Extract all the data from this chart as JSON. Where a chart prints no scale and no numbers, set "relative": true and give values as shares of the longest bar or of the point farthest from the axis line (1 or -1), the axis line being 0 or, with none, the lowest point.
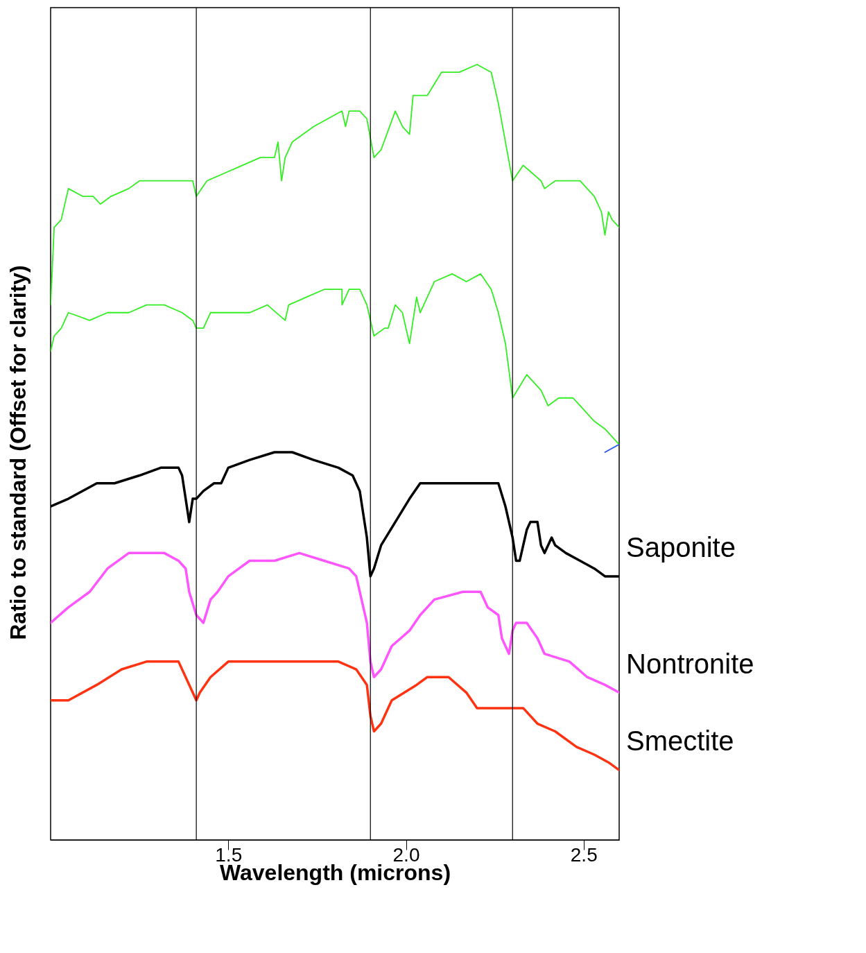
{
  "chart_data": {
    "type": "line",
    "relative": true,
    "xlabel": "Wavelength (microns)",
    "ylabel": "Ratio to standard (Offset for clarity)",
    "xlim": [
      1.0,
      2.6
    ],
    "xticks": [
      1.5,
      {
        "value": 2.0,
        "label": "2.0"
      },
      2.5
    ],
    "ref_lines": [
      {
        "axis": "x",
        "value": 1.41,
        "color": "#000000"
      },
      {
        "axis": "x",
        "value": 1.9,
        "color": "#000000"
      },
      {
        "axis": "x",
        "value": 2.3,
        "color": "#000000"
      }
    ],
    "series": [
      {
        "color": "#33ee22",
        "x": [
          1.0,
          1.01,
          1.03,
          1.05,
          1.09,
          1.12,
          1.14,
          1.17,
          1.22,
          1.25,
          1.29,
          1.32,
          1.37,
          1.4,
          1.41,
          1.44,
          1.49,
          1.54,
          1.59,
          1.63,
          1.64,
          1.65,
          1.66,
          1.68,
          1.74,
          1.78,
          1.82,
          1.83,
          1.84,
          1.87,
          1.89,
          1.91,
          1.93,
          1.97,
          1.99,
          2.01,
          2.02,
          2.06,
          2.1,
          2.15,
          2.2,
          2.24,
          2.26,
          2.28,
          2.3,
          2.33,
          2.38,
          2.39,
          2.42,
          2.46,
          2.49,
          2.53,
          2.55,
          2.56,
          2.57,
          2.58,
          2.6
        ],
        "values": [
          0.69,
          0.79,
          0.8,
          0.84,
          0.83,
          0.83,
          0.82,
          0.83,
          0.84,
          0.85,
          0.85,
          0.85,
          0.85,
          0.85,
          0.83,
          0.85,
          0.86,
          0.87,
          0.88,
          0.88,
          0.9,
          0.85,
          0.88,
          0.9,
          0.92,
          0.93,
          0.94,
          0.92,
          0.94,
          0.94,
          0.93,
          0.88,
          0.89,
          0.94,
          0.92,
          0.91,
          0.96,
          0.96,
          0.99,
          0.99,
          1.0,
          0.99,
          0.95,
          0.9,
          0.85,
          0.87,
          0.85,
          0.84,
          0.85,
          0.85,
          0.85,
          0.83,
          0.81,
          0.78,
          0.81,
          0.8,
          0.79
        ]
      },
      {
        "color": "#33ee22",
        "x": [
          1.0,
          1.01,
          1.03,
          1.05,
          1.11,
          1.16,
          1.22,
          1.27,
          1.32,
          1.37,
          1.4,
          1.41,
          1.43,
          1.45,
          1.5,
          1.56,
          1.61,
          1.66,
          1.67,
          1.72,
          1.77,
          1.82,
          1.82,
          1.84,
          1.87,
          1.89,
          1.91,
          1.94,
          1.95,
          1.97,
          1.99,
          2.01,
          2.03,
          2.04,
          2.08,
          2.13,
          2.17,
          2.21,
          2.24,
          2.26,
          2.28,
          2.3,
          2.34,
          2.38,
          2.4,
          2.43,
          2.47,
          2.49,
          2.53,
          2.56,
          2.58,
          2.6
        ],
        "values": [
          0.63,
          0.65,
          0.66,
          0.68,
          0.67,
          0.68,
          0.68,
          0.69,
          0.69,
          0.68,
          0.67,
          0.66,
          0.66,
          0.68,
          0.68,
          0.68,
          0.69,
          0.67,
          0.69,
          0.7,
          0.71,
          0.71,
          0.69,
          0.71,
          0.71,
          0.69,
          0.65,
          0.66,
          0.66,
          0.69,
          0.68,
          0.64,
          0.7,
          0.68,
          0.72,
          0.73,
          0.72,
          0.73,
          0.71,
          0.68,
          0.64,
          0.57,
          0.6,
          0.58,
          0.56,
          0.57,
          0.57,
          0.56,
          0.54,
          0.53,
          0.52,
          0.51
        ]
      },
      {
        "color": "#2255ee",
        "x": [
          2.56,
          2.6
        ],
        "values": [
          0.5,
          0.51
        ]
      },
      {
        "name": "Saponite",
        "color": "#000000",
        "x": [
          1.0,
          1.05,
          1.13,
          1.18,
          1.25,
          1.31,
          1.36,
          1.37,
          1.38,
          1.39,
          1.4,
          1.41,
          1.43,
          1.46,
          1.48,
          1.5,
          1.56,
          1.63,
          1.68,
          1.74,
          1.81,
          1.85,
          1.87,
          1.89,
          1.9,
          1.91,
          1.93,
          1.97,
          2.01,
          2.04,
          2.08,
          2.15,
          2.2,
          2.26,
          2.28,
          2.3,
          2.31,
          2.32,
          2.34,
          2.35,
          2.37,
          2.38,
          2.39,
          2.41,
          2.42,
          2.45,
          2.49,
          2.53,
          2.56,
          2.6
        ],
        "values": [
          0.43,
          0.44,
          0.46,
          0.46,
          0.47,
          0.48,
          0.48,
          0.47,
          0.44,
          0.41,
          0.44,
          0.44,
          0.45,
          0.46,
          0.46,
          0.48,
          0.49,
          0.5,
          0.5,
          0.49,
          0.48,
          0.47,
          0.45,
          0.39,
          0.34,
          0.35,
          0.38,
          0.41,
          0.44,
          0.46,
          0.46,
          0.46,
          0.46,
          0.46,
          0.43,
          0.39,
          0.36,
          0.36,
          0.4,
          0.41,
          0.41,
          0.38,
          0.37,
          0.39,
          0.38,
          0.37,
          0.36,
          0.35,
          0.34,
          0.34
        ]
      },
      {
        "name": "Nontronite",
        "color": "#ff55ff",
        "x": [
          1.0,
          1.05,
          1.11,
          1.16,
          1.22,
          1.27,
          1.32,
          1.36,
          1.38,
          1.39,
          1.41,
          1.43,
          1.45,
          1.47,
          1.5,
          1.56,
          1.63,
          1.7,
          1.77,
          1.84,
          1.86,
          1.89,
          1.9,
          1.91,
          1.93,
          1.96,
          2.01,
          2.04,
          2.08,
          2.16,
          2.21,
          2.23,
          2.26,
          2.27,
          2.29,
          2.3,
          2.31,
          2.34,
          2.37,
          2.39,
          2.46,
          2.51,
          2.56,
          2.6
        ],
        "values": [
          0.28,
          0.3,
          0.32,
          0.35,
          0.37,
          0.37,
          0.37,
          0.36,
          0.35,
          0.32,
          0.29,
          0.28,
          0.31,
          0.32,
          0.34,
          0.36,
          0.36,
          0.37,
          0.36,
          0.35,
          0.34,
          0.28,
          0.23,
          0.21,
          0.22,
          0.25,
          0.27,
          0.29,
          0.31,
          0.32,
          0.32,
          0.3,
          0.29,
          0.26,
          0.24,
          0.27,
          0.28,
          0.28,
          0.26,
          0.24,
          0.23,
          0.21,
          0.2,
          0.19
        ]
      },
      {
        "name": "Smectite",
        "color": "#ff3311",
        "x": [
          1.0,
          1.05,
          1.13,
          1.2,
          1.27,
          1.36,
          1.38,
          1.4,
          1.41,
          1.42,
          1.45,
          1.5,
          1.59,
          1.72,
          1.81,
          1.86,
          1.89,
          1.9,
          1.91,
          1.93,
          1.96,
          2.03,
          2.06,
          2.12,
          2.17,
          2.2,
          2.23,
          2.25,
          2.27,
          2.29,
          2.31,
          2.33,
          2.37,
          2.42,
          2.48,
          2.53,
          2.57,
          2.6
        ],
        "values": [
          0.18,
          0.18,
          0.2,
          0.22,
          0.23,
          0.23,
          0.21,
          0.19,
          0.18,
          0.19,
          0.21,
          0.23,
          0.23,
          0.23,
          0.23,
          0.22,
          0.2,
          0.16,
          0.14,
          0.15,
          0.18,
          0.2,
          0.21,
          0.21,
          0.19,
          0.17,
          0.17,
          0.17,
          0.17,
          0.17,
          0.17,
          0.17,
          0.15,
          0.14,
          0.12,
          0.11,
          0.1,
          0.09
        ]
      }
    ]
  }
}
